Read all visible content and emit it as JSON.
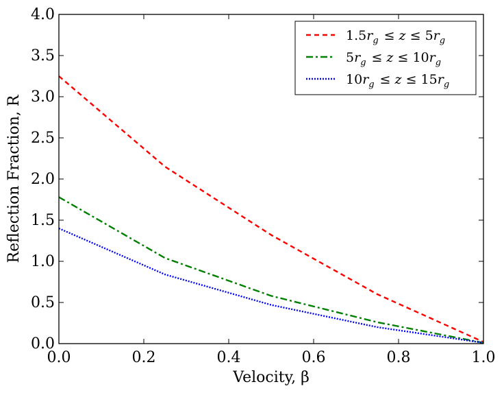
{
  "chart_data": {
    "type": "line",
    "title": "",
    "xlabel": "Velocity, β",
    "ylabel": "Reflection Fraction, R",
    "xlim": [
      0.0,
      1.0
    ],
    "ylim": [
      0.0,
      4.0
    ],
    "xticks": [
      "0.0",
      "0.2",
      "0.4",
      "0.6",
      "0.8",
      "1.0"
    ],
    "yticks": [
      "0.0",
      "0.5",
      "1.0",
      "1.5",
      "2.0",
      "2.5",
      "3.0",
      "3.5",
      "4.0"
    ],
    "grid": false,
    "legend_position": "top-right",
    "series": [
      {
        "name": "1.5r_g ≤ z ≤ 5r_g",
        "label_parts": [
          "1.5",
          "r",
          "g",
          " ≤ ",
          "z",
          " ≤ ",
          "5",
          "r",
          "g"
        ],
        "color": "#ff0000",
        "style": "dashed",
        "x": [
          0.0,
          0.25,
          0.5,
          0.75,
          1.0
        ],
        "y": [
          3.25,
          2.15,
          1.32,
          0.6,
          0.02
        ]
      },
      {
        "name": "5r_g ≤ z ≤ 10r_g",
        "label_parts": [
          "5",
          "r",
          "g",
          " ≤ ",
          "z",
          " ≤ ",
          "10",
          "r",
          "g"
        ],
        "color": "#008000",
        "style": "dashdot",
        "x": [
          0.0,
          0.25,
          0.5,
          0.75,
          1.0
        ],
        "y": [
          1.78,
          1.04,
          0.58,
          0.26,
          0.01
        ]
      },
      {
        "name": "10r_g ≤ z ≤ 15r_g",
        "label_parts": [
          "10",
          "r",
          "g",
          " ≤ ",
          "z",
          " ≤ ",
          "15",
          "r",
          "g"
        ],
        "color": "#0000ff",
        "style": "dotted",
        "x": [
          0.0,
          0.25,
          0.5,
          0.75,
          1.0
        ],
        "y": [
          1.4,
          0.84,
          0.47,
          0.2,
          0.01
        ]
      }
    ]
  }
}
